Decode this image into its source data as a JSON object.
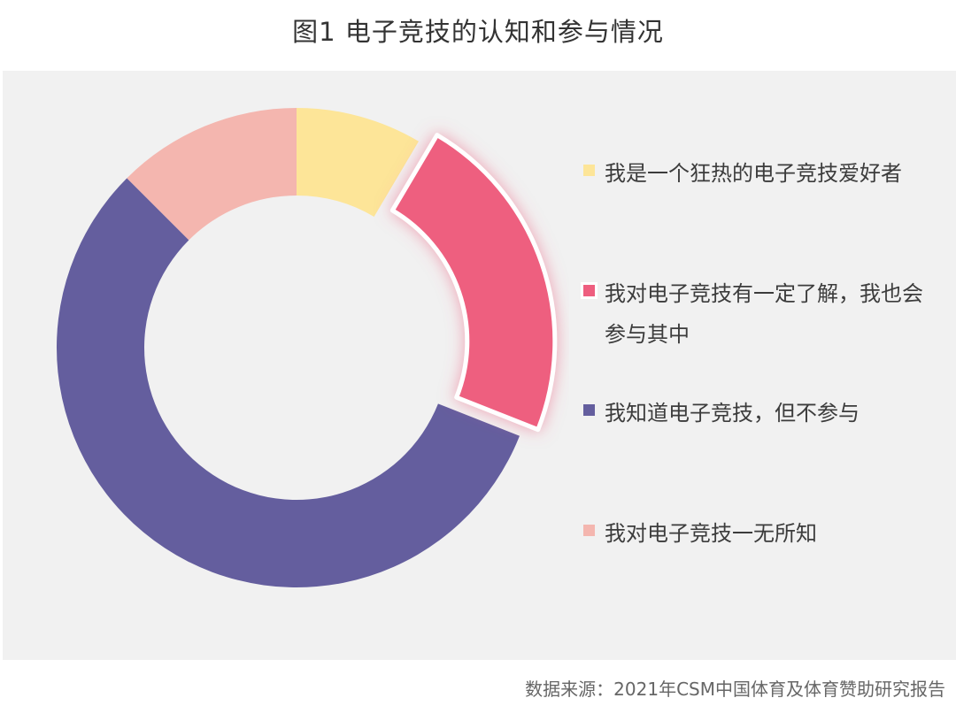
{
  "title": "图1  电子竞技的认知和参与情况",
  "source": "数据来源：2021年CSM中国体育及体育赞助研究报告",
  "chart_data": {
    "type": "pie",
    "variant": "donut",
    "legend_position": "right",
    "highlighted_index": 1,
    "slices": [
      {
        "label": "我是一个狂热的电子竞技爱好者",
        "value": 8.5,
        "color": "#fde598"
      },
      {
        "label": "我对电子竞技有一定了解，我也会参与其中",
        "value": 22.5,
        "color": "#ee5e7f"
      },
      {
        "label": "我知道电子竞技，但不参与",
        "value": 56.5,
        "color": "#645e9e"
      },
      {
        "label": "我对电子竞技一无所知",
        "value": 12.5,
        "color": "#f4b6af"
      }
    ]
  }
}
